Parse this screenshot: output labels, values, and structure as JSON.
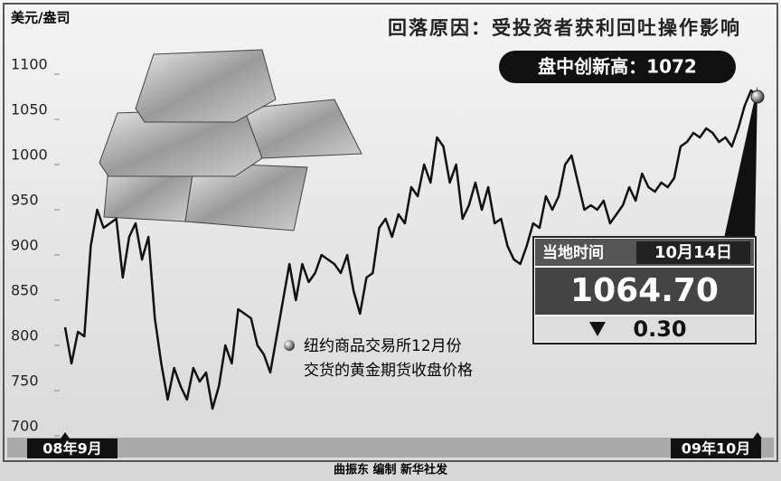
{
  "chart_data": {
    "type": "line",
    "title": "回落原因：受投资者获利回吐操作影响",
    "y_label": "美元/盎司",
    "highlight": "盘中创新高：1072",
    "note": [
      "纽约商品交易所12月份",
      "交货的黄金期货收盘价格"
    ],
    "latest": {
      "time_label": "当地时间",
      "date": "10月14日",
      "price": "1064.70",
      "change": "0.30"
    },
    "footer": "曲振东 编制 新华社发",
    "categories": [
      "08年9月",
      null,
      null,
      null,
      null,
      null,
      null,
      null,
      null,
      null,
      null,
      null,
      null,
      null,
      null,
      null,
      null,
      null,
      null,
      null,
      null,
      null,
      null,
      null,
      null,
      null,
      null,
      null,
      null,
      null,
      null,
      null,
      null,
      null,
      null,
      null,
      null,
      null,
      null,
      null,
      null,
      null,
      null,
      null,
      null,
      null,
      null,
      null,
      null,
      null,
      null,
      null,
      null,
      null,
      null,
      null,
      null,
      null,
      null,
      null,
      null,
      null,
      null,
      null,
      null,
      null,
      null,
      null,
      null,
      null,
      null,
      null,
      null,
      null,
      null,
      null,
      null,
      null,
      null,
      null,
      null,
      null,
      null,
      null,
      null,
      null,
      null,
      null,
      null,
      null,
      null,
      null,
      null,
      null,
      null,
      null,
      null,
      null,
      null,
      null,
      null,
      null,
      null,
      null,
      null,
      null,
      null,
      null,
      "09年10月"
    ],
    "series": [
      {
        "color": "#111111",
        "values": [
          810,
          770,
          805,
          800,
          900,
          940,
          920,
          925,
          930,
          865,
          910,
          925,
          885,
          910,
          820,
          770,
          730,
          765,
          745,
          730,
          765,
          750,
          760,
          720,
          745,
          790,
          770,
          830,
          825,
          820,
          790,
          780,
          760,
          800,
          840,
          880,
          840,
          880,
          860,
          870,
          890,
          885,
          880,
          870,
          890,
          850,
          825,
          865,
          870,
          920,
          930,
          910,
          935,
          925,
          965,
          955,
          990,
          970,
          1020,
          1010,
          970,
          990,
          930,
          945,
          970,
          940,
          965,
          925,
          930,
          900,
          885,
          880,
          900,
          925,
          920,
          955,
          940,
          955,
          990,
          1000,
          970,
          940,
          945,
          940,
          950,
          925,
          935,
          945,
          965,
          950,
          980,
          965,
          960,
          970,
          965,
          975,
          1010,
          1015,
          1025,
          1020,
          1030,
          1025,
          1015,
          1020,
          1010,
          1030,
          1055,
          1072,
          1065
        ]
      }
    ],
    "ylim": [
      700,
      1100
    ],
    "yticks": [
      700,
      750,
      800,
      850,
      900,
      950,
      1000,
      1050,
      1100
    ],
    "grid": false
  }
}
